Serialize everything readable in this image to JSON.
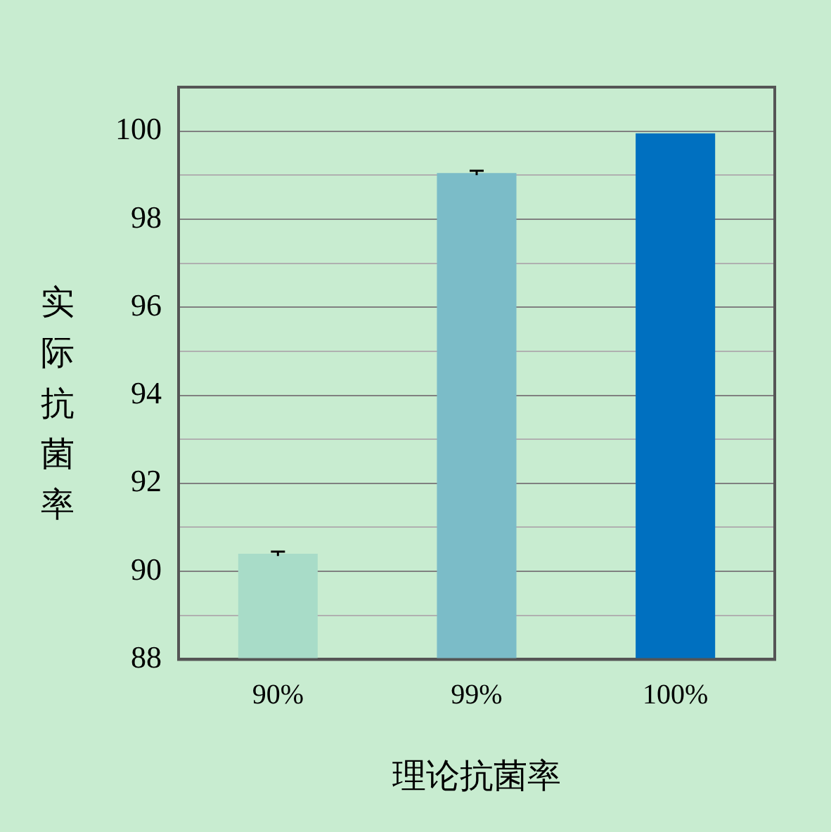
{
  "chart_data": {
    "type": "bar",
    "xlabel": "理论抗菌率",
    "ylabel": "实际抗菌率",
    "categories": [
      "90%",
      "99%",
      "100%"
    ],
    "values": [
      90.4,
      99.05,
      99.95
    ],
    "errors": [
      0.05,
      0.05,
      null
    ],
    "colors": [
      "#a8dcc8",
      "#7bbcc8",
      "#0070c0"
    ],
    "ylim": [
      88,
      101
    ],
    "yticks": [
      88,
      {
        "value": 89,
        "label": null
      },
      90,
      {
        "value": 91,
        "label": null
      },
      92,
      {
        "value": 93,
        "label": null
      },
      94,
      {
        "value": 95,
        "label": null
      },
      96,
      {
        "value": 97,
        "label": null
      },
      98,
      {
        "value": 99,
        "label": null
      },
      100
    ],
    "grid": "y",
    "legend": false
  }
}
